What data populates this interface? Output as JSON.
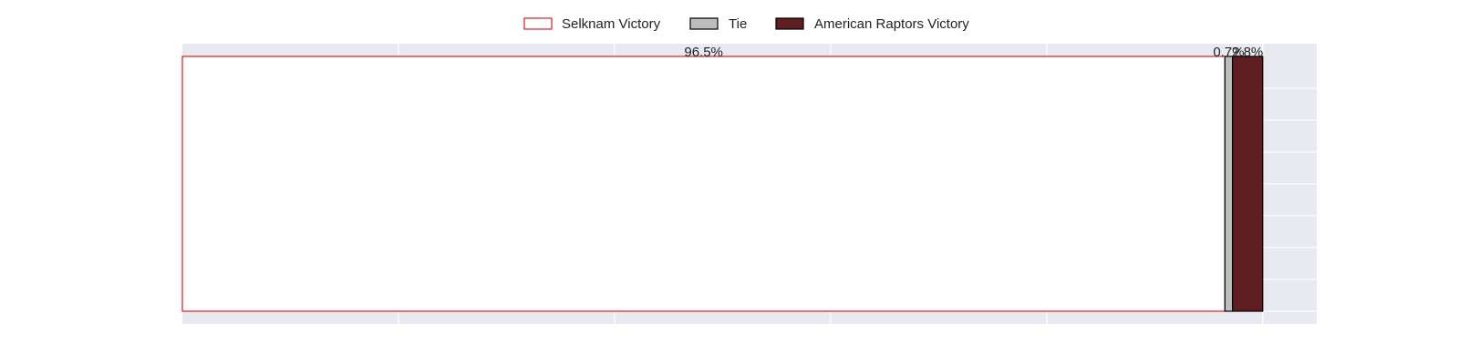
{
  "chart_data": {
    "type": "bar",
    "orientation": "horizontal",
    "stacked": true,
    "categories": [
      ""
    ],
    "series": [
      {
        "name": "Selknam Victory",
        "values": [
          96.5
        ],
        "label": "96.5%",
        "color": "#ffffff",
        "edge_color": "#e41a1c"
      },
      {
        "name": "Tie",
        "values": [
          0.7
        ],
        "label": "0.7%",
        "color": "#bdbdbd",
        "edge_color": "#000000"
      },
      {
        "name": "American Raptors Victory",
        "values": [
          2.8
        ],
        "label": "2.8%",
        "color": "#5f1e22",
        "edge_color": "#000000"
      }
    ],
    "xlim": [
      0,
      105
    ],
    "grid": true,
    "x_tick_labels": false,
    "y_tick_labels": false,
    "legend_position": "top-center",
    "background_color": "#e8e9f1",
    "grid_color": "#ffffff"
  }
}
